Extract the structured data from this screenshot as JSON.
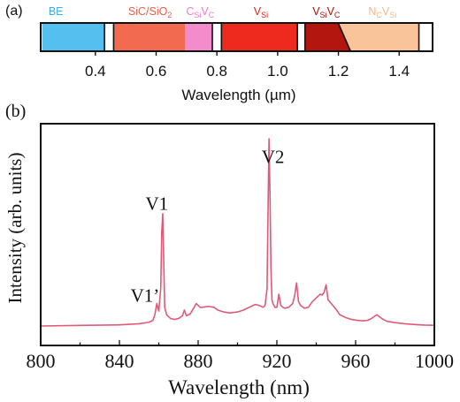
{
  "panel_a": {
    "label": "(a)",
    "colors": {
      "BE": "#55bff0",
      "SiC/SiO2": "#f26a50",
      "CsiVc": "#f48ccc",
      "VSi": "#ee2a1e",
      "VSiVC": "#b2160e",
      "NcVsi": "#fac49a"
    },
    "band_labels": [
      {
        "id": "be",
        "parts": [
          [
            "BE",
            ""
          ]
        ],
        "color": "#3aaef0",
        "center": 0.27
      },
      {
        "id": "sic-sio2",
        "parts": [
          [
            "SiC/SiO",
            ""
          ],
          [
            "2",
            "sub"
          ]
        ],
        "color": "#ee5f45",
        "center": 0.58
      },
      {
        "id": "csivc",
        "parts": [
          [
            "C",
            ""
          ],
          [
            "Si",
            "sub"
          ],
          [
            "V",
            ""
          ],
          [
            "C",
            "sub"
          ]
        ],
        "color": "#ee7ec8",
        "center": 0.745
      },
      {
        "id": "vsi",
        "parts": [
          [
            "V",
            ""
          ],
          [
            "Si",
            "sub"
          ]
        ],
        "color": "#e51e14",
        "center": 0.945
      },
      {
        "id": "vsivc",
        "parts": [
          [
            "V",
            ""
          ],
          [
            "Si",
            "sub"
          ],
          [
            "V",
            ""
          ],
          [
            "C",
            "sub"
          ]
        ],
        "color": "#a8120a",
        "center": 1.16
      },
      {
        "id": "ncvsi",
        "parts": [
          [
            "N",
            ""
          ],
          [
            "C",
            "sub"
          ],
          [
            "V",
            ""
          ],
          [
            "Si",
            "sub"
          ]
        ],
        "color": "#f5b888",
        "center": 1.345
      }
    ],
    "bands": [
      {
        "id": "be",
        "color": "#55bff0",
        "start": 0.225,
        "end": 0.43
      },
      {
        "id": "sic-sio2",
        "color": "#f26a50",
        "start": 0.46,
        "end": 0.695
      },
      {
        "id": "csivc",
        "color": "#f48ccc",
        "start": 0.695,
        "end": 0.785
      },
      {
        "id": "vsi",
        "color": "#ee2a1e",
        "start": 0.815,
        "end": 1.065
      },
      {
        "id": "vsivc",
        "color": "#b2160e",
        "start": 1.09,
        "end": 1.24
      },
      {
        "id": "ncvsi",
        "color": "#fac49a",
        "start": 1.24,
        "end": 1.465
      }
    ],
    "dividers": [
      0.43,
      0.46,
      0.785,
      0.815,
      1.065,
      1.09,
      1.465
    ],
    "axis": {
      "xmin": 0.22,
      "xmax": 1.51,
      "ticks": [
        0.4,
        0.6,
        0.8,
        1.0,
        1.2,
        1.4
      ],
      "tick_labels": [
        "0.4",
        "0.6",
        "0.8",
        "1.0",
        "1.2",
        "1.4"
      ],
      "xlabel": "Wavelength (µm)"
    }
  },
  "chart_data": {
    "type": "line",
    "panel_label": "(b)",
    "title": "",
    "xlabel": "Wavelength (nm)",
    "ylabel": "Intensity (arb. units)",
    "xlim": [
      800,
      1000
    ],
    "ylim": [
      0,
      1.0
    ],
    "xticks": [
      800,
      840,
      880,
      920,
      960,
      1000
    ],
    "xtick_labels": [
      "800",
      "840",
      "880",
      "920",
      "960",
      "1000"
    ],
    "line_color": "#e05a78",
    "series": [
      {
        "x": [
          800,
          820,
          840,
          850,
          855,
          857,
          858,
          859,
          860,
          861,
          861.5,
          862,
          862.5,
          863,
          864,
          866,
          868,
          870,
          872,
          873,
          874,
          875,
          876,
          878,
          879,
          880,
          881,
          882,
          885,
          888,
          890,
          893,
          896,
          900,
          903,
          906,
          909,
          911,
          913,
          914,
          915,
          915.5,
          916,
          916.5,
          917,
          917.5,
          918,
          919,
          920,
          921,
          922,
          923,
          924,
          926,
          928,
          929,
          930,
          931,
          932,
          934,
          936,
          938,
          940,
          941,
          942,
          943,
          944,
          945,
          946,
          948,
          950,
          952,
          955,
          958,
          961,
          964,
          966,
          968,
          970,
          971,
          972,
          974,
          976,
          980,
          985,
          990,
          995,
          1000
        ],
        "y": [
          0.0,
          0.003,
          0.006,
          0.012,
          0.02,
          0.03,
          0.06,
          0.12,
          0.08,
          0.2,
          0.5,
          0.6,
          0.35,
          0.1,
          0.06,
          0.04,
          0.035,
          0.04,
          0.055,
          0.085,
          0.055,
          0.06,
          0.065,
          0.1,
          0.12,
          0.11,
          0.1,
          0.1,
          0.105,
          0.1,
          0.085,
          0.075,
          0.07,
          0.075,
          0.085,
          0.1,
          0.115,
          0.11,
          0.1,
          0.11,
          0.2,
          0.6,
          1.0,
          0.7,
          0.3,
          0.14,
          0.12,
          0.1,
          0.1,
          0.17,
          0.11,
          0.1,
          0.095,
          0.1,
          0.12,
          0.16,
          0.23,
          0.13,
          0.11,
          0.095,
          0.1,
          0.13,
          0.15,
          0.16,
          0.17,
          0.165,
          0.18,
          0.22,
          0.14,
          0.115,
          0.09,
          0.06,
          0.045,
          0.035,
          0.03,
          0.028,
          0.03,
          0.04,
          0.055,
          0.06,
          0.05,
          0.035,
          0.025,
          0.018,
          0.012,
          0.008,
          0.005,
          0.004
        ]
      }
    ],
    "annotations": [
      {
        "text": "V1’",
        "x": 853,
        "y": 0.13
      },
      {
        "text": "V1",
        "x": 859,
        "y": 0.62
      },
      {
        "text": "V2",
        "x": 918,
        "y": 0.87
      }
    ]
  }
}
